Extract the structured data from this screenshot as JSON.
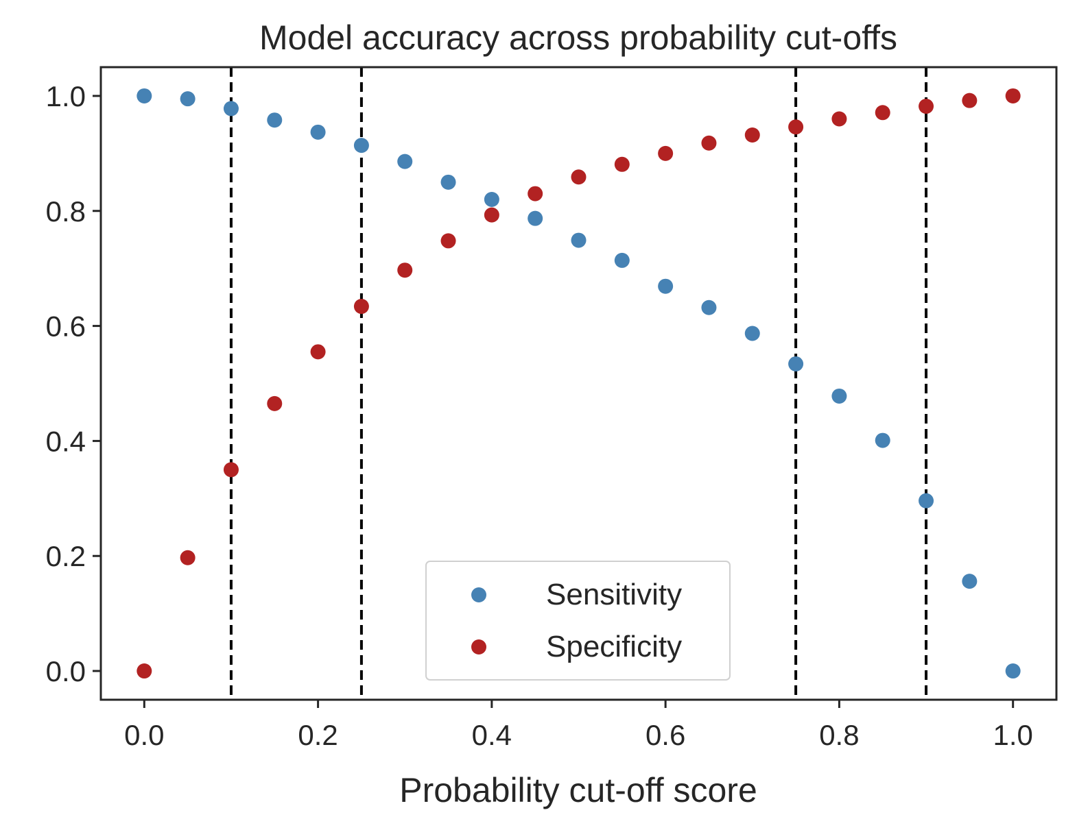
{
  "chart_data": {
    "type": "scatter",
    "title": "Model accuracy across probability cut-offs",
    "xlabel": "Probability cut-off score",
    "ylabel": "",
    "xlim": [
      -0.05,
      1.05
    ],
    "ylim": [
      -0.05,
      1.05
    ],
    "xticks": [
      0.0,
      0.2,
      0.4,
      0.6,
      0.8,
      1.0
    ],
    "xtick_labels": [
      "0.0",
      "0.2",
      "0.4",
      "0.6",
      "0.8",
      "1.0"
    ],
    "yticks": [
      0.0,
      0.2,
      0.4,
      0.6,
      0.8,
      1.0
    ],
    "ytick_labels": [
      "0.0",
      "0.2",
      "0.4",
      "0.6",
      "0.8",
      "1.0"
    ],
    "grid": false,
    "legend_position": "bottom-center",
    "x": [
      0.0,
      0.05,
      0.1,
      0.15,
      0.2,
      0.25,
      0.3,
      0.35,
      0.4,
      0.45,
      0.5,
      0.55,
      0.6,
      0.65,
      0.7,
      0.75,
      0.8,
      0.85,
      0.9,
      0.95,
      1.0
    ],
    "series": [
      {
        "name": "Sensitivity",
        "color": "#4682b4",
        "values": [
          1.0,
          0.995,
          0.978,
          0.958,
          0.937,
          0.914,
          0.886,
          0.85,
          0.82,
          0.787,
          0.749,
          0.714,
          0.669,
          0.632,
          0.587,
          0.534,
          0.478,
          0.401,
          0.296,
          0.156,
          0.0
        ]
      },
      {
        "name": "Specificity",
        "color": "#b22222",
        "values": [
          0.0,
          0.197,
          0.35,
          0.465,
          0.555,
          0.634,
          0.697,
          0.748,
          0.793,
          0.83,
          0.859,
          0.881,
          0.9,
          0.918,
          0.932,
          0.946,
          0.96,
          0.971,
          0.982,
          0.992,
          1.0
        ]
      }
    ],
    "vlines": {
      "x": [
        0.1,
        0.25,
        0.75,
        0.9
      ],
      "style": "dashed",
      "color": "#000000"
    }
  }
}
